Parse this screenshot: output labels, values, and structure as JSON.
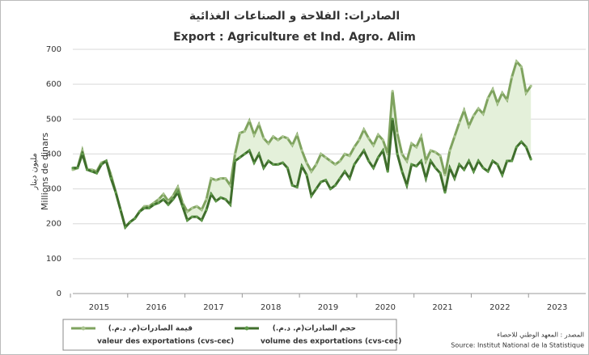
{
  "chart_data": {
    "type": "line",
    "title": "الصادرات: الفلاحة و الصناعات الغذائية",
    "subtitle": "Export :  Agriculture et Ind. Agro. Alim",
    "ylabel": "Millions de dinars",
    "ylabel_ar": "مليون دينار",
    "source_ar": "المصدر : المعهد الوطني للاحصاء",
    "source": "Source: Institut National de la Statistique",
    "categories": [
      null,
      null,
      null,
      null,
      null,
      null,
      "2015",
      null,
      null,
      null,
      null,
      null,
      null,
      null,
      null,
      null,
      null,
      null,
      "2016",
      null,
      null,
      null,
      null,
      null,
      null,
      null,
      null,
      null,
      null,
      null,
      "2017",
      null,
      null,
      null,
      null,
      null,
      null,
      null,
      null,
      null,
      null,
      null,
      "2018",
      null,
      null,
      null,
      null,
      null,
      null,
      null,
      null,
      null,
      null,
      null,
      "2019",
      null,
      null,
      null,
      null,
      null,
      null,
      null,
      null,
      null,
      null,
      null,
      "2020",
      null,
      null,
      null,
      null,
      null,
      null,
      null,
      null,
      null,
      null,
      null,
      "2021",
      null,
      null,
      null,
      null,
      null,
      null,
      null,
      null,
      null,
      null,
      null,
      "2022",
      null,
      null,
      null,
      null,
      null,
      null,
      null,
      null,
      null,
      null,
      null,
      "2023",
      null,
      null,
      null,
      null,
      null
    ],
    "series": [
      {
        "name": "valeur des exportations (cvs-cec)",
        "name_ar": "قيمة الصادرات(م. د.م.)",
        "color": "#7fa35f",
        "marker_color": "#a9c48f",
        "values": [
          355,
          360,
          410,
          355,
          355,
          350,
          375,
          380,
          340,
          290,
          240,
          190,
          205,
          215,
          235,
          250,
          250,
          260,
          270,
          285,
          265,
          280,
          305,
          260,
          235,
          245,
          250,
          240,
          270,
          330,
          325,
          330,
          330,
          310,
          400,
          460,
          465,
          495,
          455,
          485,
          445,
          430,
          450,
          440,
          450,
          445,
          425,
          455,
          410,
          375,
          350,
          370,
          400,
          390,
          380,
          370,
          380,
          400,
          395,
          420,
          440,
          470,
          445,
          425,
          455,
          440,
          400,
          580,
          460,
          400,
          380,
          430,
          420,
          450,
          380,
          410,
          405,
          395,
          340,
          410,
          450,
          490,
          525,
          480,
          510,
          530,
          515,
          560,
          585,
          545,
          575,
          555,
          620,
          665,
          650,
          575,
          595,
          null,
          null,
          null,
          null,
          null,
          null,
          null,
          null,
          null,
          null,
          null
        ]
      },
      {
        "name": "volume des exportations (cvs-cec)",
        "name_ar": "حجم الصادرات(م. د.م.)",
        "color": "#3f6e2c",
        "marker_color": "#5f9a4a",
        "values": [
          360,
          360,
          400,
          355,
          350,
          345,
          370,
          380,
          330,
          290,
          240,
          190,
          205,
          215,
          235,
          245,
          245,
          255,
          260,
          270,
          255,
          270,
          290,
          250,
          210,
          220,
          220,
          210,
          240,
          285,
          265,
          275,
          270,
          255,
          380,
          390,
          400,
          410,
          375,
          400,
          360,
          380,
          370,
          370,
          375,
          360,
          310,
          305,
          365,
          340,
          280,
          300,
          320,
          325,
          300,
          310,
          330,
          350,
          330,
          370,
          390,
          410,
          380,
          360,
          390,
          410,
          350,
          500,
          400,
          350,
          310,
          370,
          365,
          380,
          330,
          380,
          360,
          345,
          290,
          360,
          330,
          370,
          355,
          380,
          350,
          380,
          360,
          350,
          380,
          370,
          340,
          380,
          380,
          420,
          435,
          420,
          385,
          null,
          null,
          null,
          null,
          null,
          null,
          null,
          null,
          null,
          null,
          null
        ]
      }
    ],
    "fill_between_color": "#e4f0da",
    "ylim": [
      0,
      700
    ],
    "yticks": [
      0,
      100,
      200,
      300,
      400,
      500,
      600,
      700
    ],
    "grid": true
  }
}
